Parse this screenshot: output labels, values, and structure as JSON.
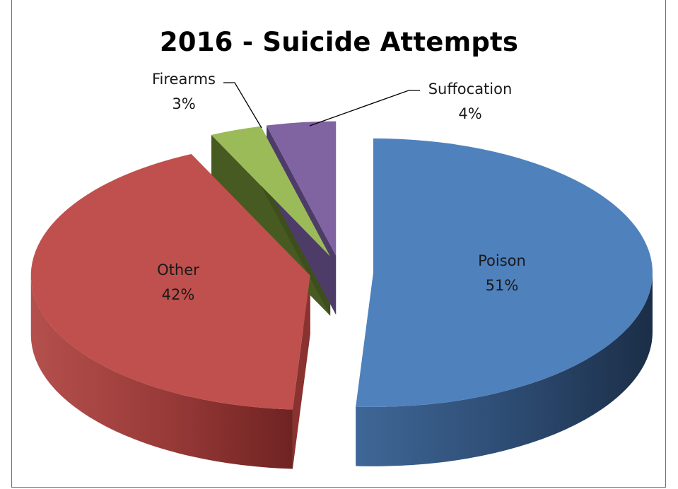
{
  "chart_data": {
    "type": "pie",
    "title": "2016 - Suicide Attempts",
    "three_d": true,
    "exploded": true,
    "legend": "none",
    "slices": [
      {
        "label": "Poison",
        "value": 51,
        "percent_label": "51%",
        "color": "#4f81bd"
      },
      {
        "label": "Other",
        "value": 42,
        "percent_label": "42%",
        "color": "#c0504d"
      },
      {
        "label": "Firearms",
        "value": 3,
        "percent_label": "3%",
        "color": "#9bbb59"
      },
      {
        "label": "Suffocation",
        "value": 4,
        "percent_label": "4%",
        "color": "#8064a2"
      }
    ]
  }
}
